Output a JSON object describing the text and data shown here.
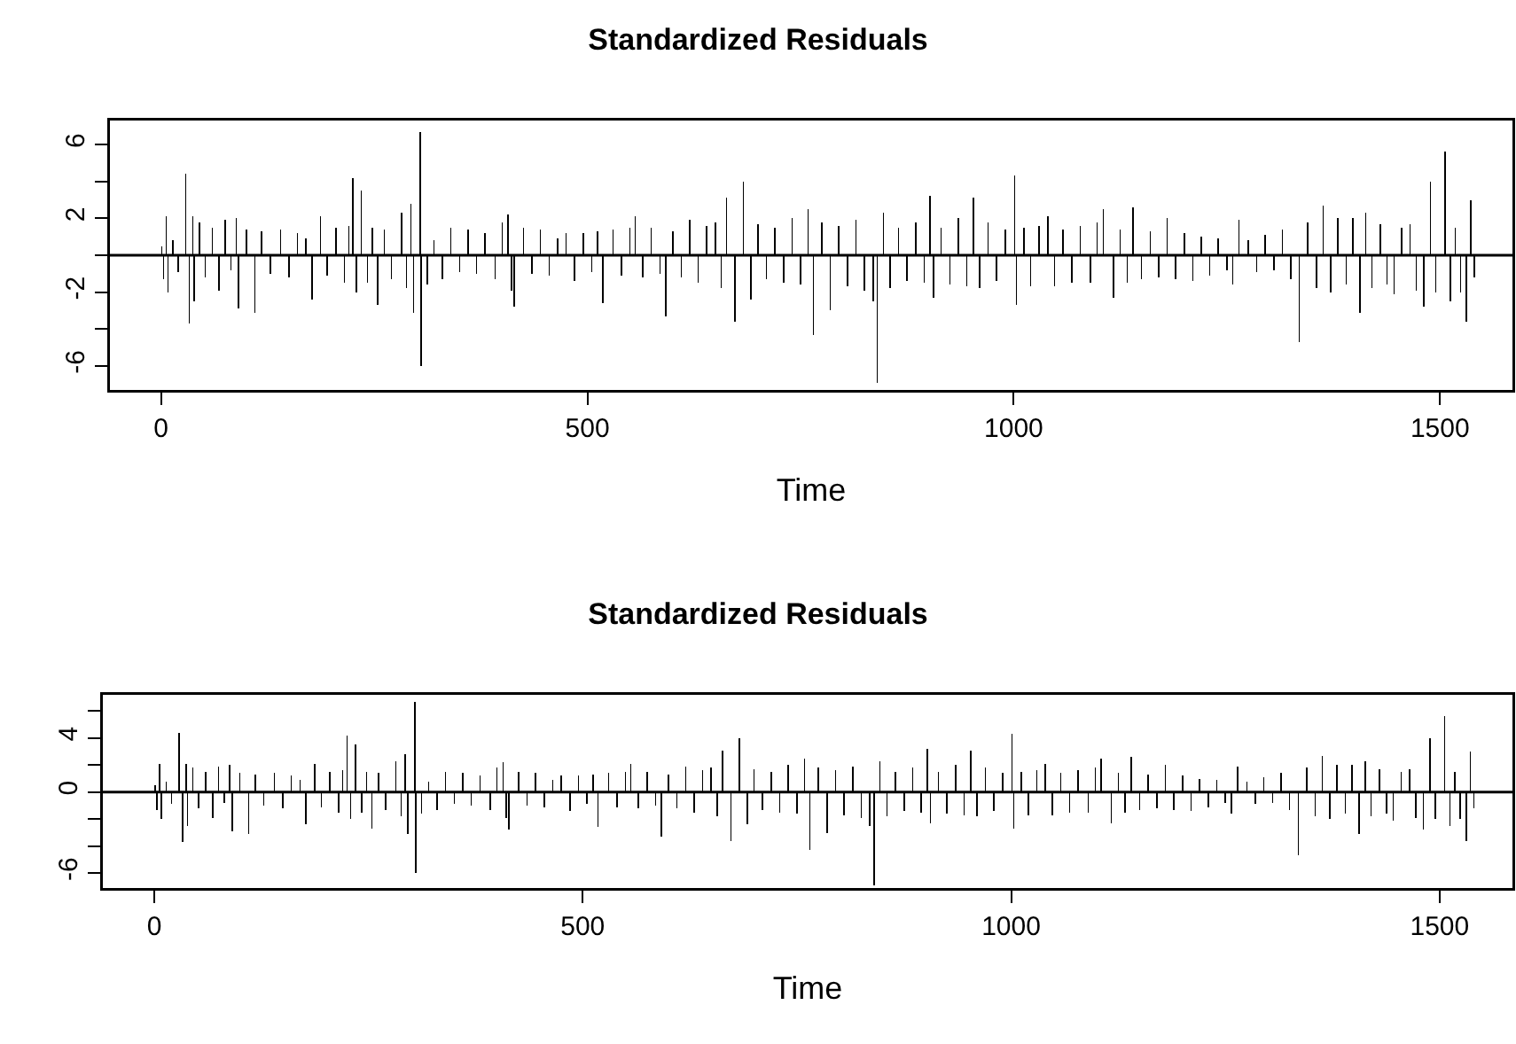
{
  "chart_data": [
    {
      "type": "bar",
      "title": "Standardized Residuals",
      "xlabel": "Time",
      "color": "#000000",
      "x": [
        1,
        3,
        6,
        8,
        14,
        20,
        29,
        33,
        37,
        39,
        45,
        52,
        60,
        68,
        75,
        82,
        88,
        91,
        100,
        110,
        118,
        128,
        140,
        150,
        160,
        170,
        177,
        187,
        195,
        205,
        215,
        220,
        225,
        229,
        235,
        242,
        248,
        254,
        262,
        270,
        282,
        288,
        293,
        296,
        304,
        305,
        312,
        320,
        330,
        340,
        350,
        360,
        370,
        380,
        392,
        400,
        407,
        411,
        414,
        425,
        435,
        445,
        455,
        465,
        475,
        485,
        495,
        505,
        512,
        518,
        530,
        540,
        550,
        556,
        565,
        575,
        585,
        592,
        600,
        610,
        620,
        630,
        640,
        650,
        657,
        663,
        673,
        683,
        692,
        700,
        710,
        720,
        730,
        740,
        750,
        759,
        765,
        775,
        785,
        795,
        805,
        815,
        825,
        835,
        840,
        847,
        855,
        865,
        875,
        885,
        895,
        902,
        906,
        915,
        925,
        935,
        945,
        953,
        960,
        970,
        980,
        990,
        1001,
        1003,
        1012,
        1020,
        1030,
        1040,
        1048,
        1058,
        1068,
        1078,
        1090,
        1098,
        1105,
        1117,
        1125,
        1133,
        1140,
        1150,
        1160,
        1170,
        1180,
        1190,
        1200,
        1210,
        1220,
        1230,
        1240,
        1250,
        1257,
        1264,
        1275,
        1285,
        1295,
        1305,
        1315,
        1325,
        1335,
        1345,
        1355,
        1363,
        1372,
        1380,
        1390,
        1398,
        1406,
        1413,
        1420,
        1430,
        1438,
        1446,
        1455,
        1465,
        1472,
        1481,
        1489,
        1495,
        1506,
        1512,
        1518,
        1524,
        1531,
        1536,
        1540
      ],
      "values": [
        0.5,
        -1.3,
        2.1,
        -2.0,
        0.8,
        -0.9,
        4.4,
        -3.7,
        2.1,
        -2.5,
        1.8,
        -1.2,
        1.5,
        -1.9,
        1.9,
        -0.8,
        2.0,
        -2.9,
        1.4,
        -3.1,
        1.3,
        -1.0,
        1.4,
        -1.2,
        1.2,
        0.9,
        -2.4,
        2.1,
        -1.1,
        1.5,
        -1.5,
        1.6,
        4.2,
        -2.0,
        3.5,
        -1.5,
        1.5,
        -2.7,
        1.4,
        -1.3,
        2.3,
        -1.8,
        2.8,
        -3.1,
        6.7,
        -6.0,
        -1.6,
        0.8,
        -1.3,
        1.5,
        -0.9,
        1.4,
        -1.0,
        1.2,
        -1.3,
        1.8,
        2.2,
        -1.9,
        -2.8,
        1.5,
        -1.0,
        1.4,
        -1.1,
        0.9,
        1.2,
        -1.4,
        1.2,
        -0.9,
        1.3,
        -2.6,
        1.4,
        -1.1,
        1.5,
        2.1,
        -1.2,
        1.5,
        -1.0,
        -3.3,
        1.3,
        -1.2,
        1.9,
        -1.5,
        1.6,
        1.8,
        -1.8,
        3.1,
        -3.6,
        4.0,
        -2.4,
        1.7,
        -1.3,
        1.5,
        -1.5,
        2.0,
        -1.6,
        2.5,
        -4.3,
        1.8,
        -3.0,
        1.6,
        -1.7,
        1.9,
        -1.9,
        -2.5,
        -6.9,
        2.3,
        -1.8,
        1.5,
        -1.4,
        1.8,
        -1.5,
        3.2,
        -2.3,
        1.5,
        -1.6,
        2.0,
        -1.7,
        3.1,
        -1.8,
        1.8,
        -1.4,
        1.4,
        4.3,
        -2.7,
        1.5,
        -1.7,
        1.6,
        2.1,
        -1.7,
        1.4,
        -1.5,
        1.6,
        -1.5,
        1.8,
        2.5,
        -2.3,
        1.4,
        -1.5,
        2.6,
        -1.3,
        1.3,
        -1.2,
        2.0,
        -1.3,
        1.2,
        -1.4,
        1.0,
        -1.1,
        0.9,
        -0.8,
        -1.6,
        1.9,
        0.8,
        -0.9,
        1.1,
        -0.8,
        1.4,
        -1.3,
        -4.7,
        1.8,
        -1.8,
        2.7,
        -2.0,
        2.0,
        -1.6,
        2.0,
        -3.1,
        2.3,
        -1.8,
        1.7,
        -1.6,
        -2.1,
        1.5,
        1.7,
        -1.9,
        -2.8,
        4.0,
        -2.0,
        5.6,
        -2.5,
        1.5,
        -2.0,
        -3.6,
        3.0,
        -1.2
      ],
      "xlim": [
        -60,
        1585
      ],
      "xticks": [
        0,
        500,
        1000,
        1500
      ],
      "ylim": [
        -7.3,
        7.3
      ],
      "yticks": [
        -6,
        {
          "value": -4,
          "label": null
        },
        -2,
        {
          "value": 0,
          "label": null
        },
        2,
        {
          "value": 4,
          "label": null
        },
        6
      ],
      "ref_lines": [
        {
          "axis": "y",
          "value": 0,
          "color": "#000000",
          "line_style": "solid"
        }
      ]
    },
    {
      "type": "bar",
      "title": "Standardized Residuals",
      "xlabel": "Time",
      "color": "#000000",
      "x": [
        1,
        3,
        6,
        8,
        14,
        20,
        29,
        33,
        37,
        39,
        45,
        52,
        60,
        68,
        75,
        82,
        88,
        91,
        100,
        110,
        118,
        128,
        140,
        150,
        160,
        170,
        177,
        187,
        195,
        205,
        215,
        220,
        225,
        229,
        235,
        242,
        248,
        254,
        262,
        270,
        282,
        288,
        293,
        296,
        304,
        305,
        312,
        320,
        330,
        340,
        350,
        360,
        370,
        380,
        392,
        400,
        407,
        411,
        414,
        425,
        435,
        445,
        455,
        465,
        475,
        485,
        495,
        505,
        512,
        518,
        530,
        540,
        550,
        556,
        565,
        575,
        585,
        592,
        600,
        610,
        620,
        630,
        640,
        650,
        657,
        663,
        673,
        683,
        692,
        700,
        710,
        720,
        730,
        740,
        750,
        759,
        765,
        775,
        785,
        795,
        805,
        815,
        825,
        835,
        840,
        847,
        855,
        865,
        875,
        885,
        895,
        902,
        906,
        915,
        925,
        935,
        945,
        953,
        960,
        970,
        980,
        990,
        1001,
        1003,
        1012,
        1020,
        1030,
        1040,
        1048,
        1058,
        1068,
        1078,
        1090,
        1098,
        1105,
        1117,
        1125,
        1133,
        1140,
        1150,
        1160,
        1170,
        1180,
        1190,
        1200,
        1210,
        1220,
        1230,
        1240,
        1250,
        1257,
        1264,
        1275,
        1285,
        1295,
        1305,
        1315,
        1325,
        1335,
        1345,
        1355,
        1363,
        1372,
        1380,
        1390,
        1398,
        1406,
        1413,
        1420,
        1430,
        1438,
        1446,
        1455,
        1465,
        1472,
        1481,
        1489,
        1495,
        1506,
        1512,
        1518,
        1524,
        1531,
        1536,
        1540
      ],
      "values": [
        0.5,
        -1.3,
        2.1,
        -2.0,
        0.8,
        -0.9,
        4.4,
        -3.7,
        2.1,
        -2.5,
        1.8,
        -1.2,
        1.5,
        -1.9,
        1.9,
        -0.8,
        2.0,
        -2.9,
        1.4,
        -3.1,
        1.3,
        -1.0,
        1.4,
        -1.2,
        1.2,
        0.9,
        -2.4,
        2.1,
        -1.1,
        1.5,
        -1.5,
        1.6,
        4.2,
        -2.0,
        3.5,
        -1.5,
        1.5,
        -2.7,
        1.4,
        -1.3,
        2.3,
        -1.8,
        2.8,
        -3.1,
        6.7,
        -6.0,
        -1.6,
        0.8,
        -1.3,
        1.5,
        -0.9,
        1.4,
        -1.0,
        1.2,
        -1.3,
        1.8,
        2.2,
        -1.9,
        -2.8,
        1.5,
        -1.0,
        1.4,
        -1.1,
        0.9,
        1.2,
        -1.4,
        1.2,
        -0.9,
        1.3,
        -2.6,
        1.4,
        -1.1,
        1.5,
        2.1,
        -1.2,
        1.5,
        -1.0,
        -3.3,
        1.3,
        -1.2,
        1.9,
        -1.5,
        1.6,
        1.8,
        -1.8,
        3.1,
        -3.6,
        4.0,
        -2.4,
        1.7,
        -1.3,
        1.5,
        -1.5,
        2.0,
        -1.6,
        2.5,
        -4.3,
        1.8,
        -3.0,
        1.6,
        -1.7,
        1.9,
        -1.9,
        -2.5,
        -6.9,
        2.3,
        -1.8,
        1.5,
        -1.4,
        1.8,
        -1.5,
        3.2,
        -2.3,
        1.5,
        -1.6,
        2.0,
        -1.7,
        3.1,
        -1.8,
        1.8,
        -1.4,
        1.4,
        4.3,
        -2.7,
        1.5,
        -1.7,
        1.6,
        2.1,
        -1.7,
        1.4,
        -1.5,
        1.6,
        -1.5,
        1.8,
        2.5,
        -2.3,
        1.4,
        -1.5,
        2.6,
        -1.3,
        1.3,
        -1.2,
        2.0,
        -1.3,
        1.2,
        -1.4,
        1.0,
        -1.1,
        0.9,
        -0.8,
        -1.6,
        1.9,
        0.8,
        -0.9,
        1.1,
        -0.8,
        1.4,
        -1.3,
        -4.7,
        1.8,
        -1.8,
        2.7,
        -2.0,
        2.0,
        -1.6,
        2.0,
        -3.1,
        2.3,
        -1.8,
        1.7,
        -1.6,
        -2.1,
        1.5,
        1.7,
        -1.9,
        -2.8,
        4.0,
        -2.0,
        5.6,
        -2.5,
        1.5,
        -2.0,
        -3.6,
        3.0,
        -1.2
      ],
      "xlim": [
        -60,
        1585
      ],
      "xticks": [
        0,
        500,
        1000,
        1500
      ],
      "ylim": [
        -7.1,
        7.2
      ],
      "yticks": [
        -6,
        {
          "value": -4,
          "label": null
        },
        {
          "value": -2,
          "label": null
        },
        0,
        {
          "value": 2,
          "label": null
        },
        4,
        {
          "value": 6,
          "label": null
        }
      ],
      "ref_lines": [
        {
          "axis": "y",
          "value": 0,
          "color": "#000000",
          "line_style": "solid"
        }
      ]
    }
  ]
}
